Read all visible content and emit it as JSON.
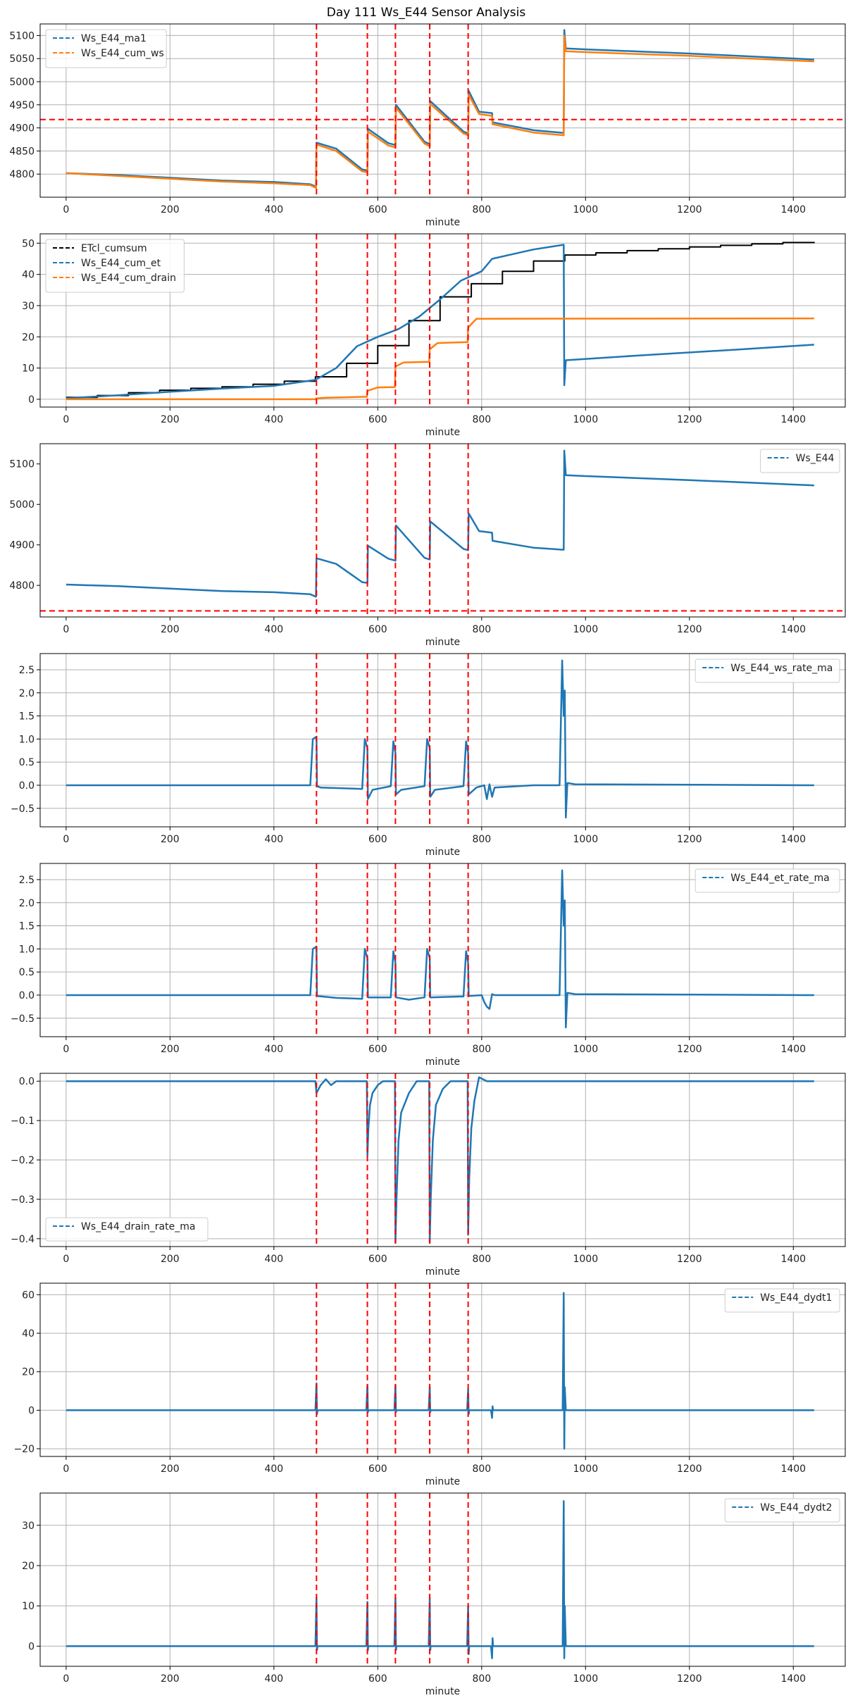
{
  "figure": {
    "title": "Day 111 Ws_E44 Sensor Analysis"
  },
  "colors": {
    "blue": "#1f77b4",
    "orange": "#ff7f0e",
    "black": "#000000",
    "red": "#ff0000",
    "grid": "#b0b0b0"
  },
  "chart_data": [
    {
      "type": "line",
      "xlabel": "minute",
      "xlim": [
        -50,
        1500
      ],
      "ylim": [
        4750,
        5125
      ],
      "yticks": [
        4800,
        4850,
        4900,
        4950,
        5000,
        5050,
        5100
      ],
      "xticks": [
        0,
        200,
        400,
        600,
        800,
        1000,
        1200,
        1400
      ],
      "grid": true,
      "legend_position": "top-left",
      "vlines": [
        482,
        580,
        634,
        700,
        774
      ],
      "hlines": [
        4918
      ],
      "series": [
        {
          "name": "Ws_E44_ma1",
          "color": "blue",
          "style": "dashed",
          "x": [
            0,
            100,
            200,
            300,
            400,
            470,
            481,
            482,
            520,
            570,
            580,
            581,
            620,
            634,
            635,
            690,
            700,
            701,
            765,
            774,
            775,
            795,
            820,
            821,
            900,
            958,
            959,
            962,
            1000,
            1200,
            1440
          ],
          "y": [
            4802,
            4798,
            4792,
            4786,
            4783,
            4778,
            4773,
            4868,
            4855,
            4810,
            4808,
            4898,
            4867,
            4863,
            4950,
            4870,
            4865,
            4958,
            4892,
            4888,
            4980,
            4935,
            4932,
            4912,
            4895,
            4889,
            5112,
            5072,
            5070,
            5061,
            5048
          ]
        },
        {
          "name": "Ws_E44_cum_ws",
          "color": "orange",
          "style": "dashed",
          "x": [
            0,
            100,
            200,
            300,
            400,
            470,
            481,
            482,
            520,
            570,
            580,
            581,
            620,
            634,
            635,
            690,
            700,
            701,
            765,
            774,
            775,
            795,
            820,
            821,
            900,
            958,
            959,
            962,
            1000,
            1200,
            1440
          ],
          "y": [
            4802,
            4796,
            4790,
            4784,
            4780,
            4776,
            4770,
            4864,
            4850,
            4806,
            4804,
            4892,
            4862,
            4858,
            4944,
            4866,
            4860,
            4952,
            4888,
            4884,
            4972,
            4930,
            4926,
            4908,
            4890,
            4884,
            5100,
            5066,
            5064,
            5056,
            5044
          ]
        }
      ]
    },
    {
      "type": "line",
      "xlabel": "minute",
      "xlim": [
        -50,
        1500
      ],
      "ylim": [
        -2.5,
        53
      ],
      "yticks": [
        0,
        10,
        20,
        30,
        40,
        50
      ],
      "xticks": [
        0,
        200,
        400,
        600,
        800,
        1000,
        1200,
        1400
      ],
      "grid": true,
      "legend_position": "top-left",
      "vlines": [
        482,
        580,
        634,
        700,
        774
      ],
      "hlines": [],
      "series": [
        {
          "name": "ETcl_cumsum",
          "color": "black",
          "style": "dashed",
          "step": true,
          "x": [
            0,
            60,
            120,
            180,
            240,
            300,
            360,
            420,
            480,
            540,
            600,
            660,
            720,
            780,
            840,
            900,
            960,
            1020,
            1080,
            1140,
            1200,
            1260,
            1320,
            1380,
            1440
          ],
          "y": [
            0.6,
            1.2,
            2.1,
            2.9,
            3.5,
            4.0,
            4.8,
            5.8,
            7.2,
            11.5,
            17.2,
            25.2,
            32.8,
            37.0,
            41.0,
            44.3,
            46.2,
            46.9,
            47.6,
            48.2,
            48.8,
            49.3,
            49.8,
            50.2,
            50.4
          ]
        },
        {
          "name": "Ws_E44_cum_et",
          "color": "blue",
          "style": "dashed",
          "x": [
            0,
            100,
            200,
            300,
            400,
            480,
            520,
            560,
            600,
            640,
            680,
            720,
            760,
            800,
            820,
            860,
            900,
            958,
            959,
            962,
            1100,
            1300,
            1440
          ],
          "y": [
            0.3,
            1.3,
            2.4,
            3.4,
            4.3,
            6.2,
            10.0,
            17.0,
            20.0,
            22.5,
            26.5,
            32.0,
            38.0,
            41.0,
            45.0,
            46.5,
            48.0,
            49.5,
            4.5,
            12.5,
            14.0,
            16.0,
            17.5
          ]
        },
        {
          "name": "Ws_E44_cum_drain",
          "color": "orange",
          "style": "dashed",
          "x": [
            0,
            480,
            481,
            500,
            579,
            580,
            600,
            633,
            634,
            650,
            699,
            700,
            715,
            773,
            774,
            790,
            1440
          ],
          "y": [
            0,
            0,
            0.3,
            0.5,
            0.8,
            2.7,
            3.8,
            3.9,
            10.5,
            11.8,
            12.0,
            16.0,
            18.0,
            18.3,
            23.0,
            25.8,
            25.9
          ]
        }
      ]
    },
    {
      "type": "line",
      "xlabel": "minute",
      "xlim": [
        -50,
        1500
      ],
      "ylim": [
        4722,
        5150
      ],
      "yticks": [
        4800,
        4900,
        5000,
        5100
      ],
      "xticks": [
        0,
        200,
        400,
        600,
        800,
        1000,
        1200,
        1400
      ],
      "grid": false,
      "legend_position": "top-right",
      "vlines": [
        482,
        580,
        634,
        700,
        774
      ],
      "hlines": [
        4737
      ],
      "series": [
        {
          "name": "Ws_E44",
          "color": "blue",
          "style": "dashed",
          "x": [
            0,
            100,
            200,
            300,
            400,
            470,
            481,
            482,
            520,
            570,
            580,
            581,
            620,
            634,
            635,
            690,
            700,
            701,
            765,
            774,
            775,
            795,
            820,
            821,
            900,
            958,
            959,
            962,
            1000,
            1200,
            1440
          ],
          "y": [
            4802,
            4798,
            4792,
            4786,
            4783,
            4778,
            4772,
            4867,
            4853,
            4808,
            4806,
            4898,
            4866,
            4861,
            4948,
            4868,
            4864,
            4958,
            4890,
            4887,
            4978,
            4934,
            4930,
            4910,
            4893,
            4888,
            5133,
            5072,
            5070,
            5060,
            5047
          ]
        }
      ]
    },
    {
      "type": "line",
      "xlabel": "minute",
      "xlim": [
        -50,
        1500
      ],
      "ylim": [
        -0.9,
        2.85
      ],
      "yticks": [
        -0.5,
        0.0,
        0.5,
        1.0,
        1.5,
        2.0,
        2.5
      ],
      "xticks": [
        0,
        200,
        400,
        600,
        800,
        1000,
        1200,
        1400
      ],
      "grid": true,
      "legend_position": "top-right",
      "vlines": [
        482,
        580,
        634,
        700,
        774
      ],
      "hlines": [],
      "series": [
        {
          "name": "Ws_E44_ws_rate_ma",
          "color": "blue",
          "style": "dashed",
          "x": [
            0,
            470,
            475,
            482,
            483,
            490,
            570,
            575,
            580,
            581,
            590,
            625,
            630,
            634,
            635,
            645,
            690,
            695,
            700,
            701,
            710,
            765,
            770,
            774,
            775,
            790,
            805,
            810,
            815,
            820,
            825,
            900,
            950,
            955,
            958,
            960,
            962,
            965,
            980,
            1440
          ],
          "y": [
            0,
            0,
            1.0,
            1.05,
            -0.02,
            -0.05,
            -0.08,
            1.0,
            0.8,
            -0.3,
            -0.1,
            -0.02,
            0.95,
            0.7,
            -0.2,
            -0.1,
            -0.02,
            1.0,
            0.8,
            -0.25,
            -0.1,
            -0.02,
            0.95,
            0.7,
            -0.2,
            -0.05,
            0.0,
            -0.3,
            0.02,
            -0.25,
            -0.05,
            0,
            0,
            2.7,
            1.5,
            2.05,
            -0.7,
            0.05,
            0.02,
            0
          ]
        }
      ]
    },
    {
      "type": "line",
      "xlabel": "minute",
      "xlim": [
        -50,
        1500
      ],
      "ylim": [
        -0.9,
        2.85
      ],
      "yticks": [
        -0.5,
        0.0,
        0.5,
        1.0,
        1.5,
        2.0,
        2.5
      ],
      "xticks": [
        0,
        200,
        400,
        600,
        800,
        1000,
        1200,
        1400
      ],
      "grid": true,
      "legend_position": "top-right",
      "vlines": [
        482,
        580,
        634,
        700,
        774
      ],
      "hlines": [],
      "series": [
        {
          "name": "Ws_E44_et_rate_ma",
          "color": "blue",
          "style": "dashed",
          "x": [
            0,
            470,
            475,
            482,
            483,
            520,
            570,
            575,
            580,
            581,
            625,
            630,
            634,
            635,
            660,
            690,
            695,
            700,
            701,
            765,
            770,
            774,
            775,
            800,
            805,
            810,
            815,
            820,
            825,
            900,
            950,
            955,
            958,
            960,
            962,
            965,
            980,
            1440
          ],
          "y": [
            0,
            0,
            1.0,
            1.05,
            -0.02,
            -0.06,
            -0.08,
            1.0,
            0.8,
            -0.05,
            -0.05,
            0.95,
            0.7,
            -0.05,
            -0.1,
            -0.05,
            1.0,
            0.8,
            -0.05,
            -0.03,
            0.95,
            0.7,
            -0.02,
            0.0,
            -0.15,
            -0.25,
            -0.3,
            0.02,
            0.0,
            0,
            0,
            2.7,
            1.5,
            2.05,
            -0.7,
            0.05,
            0.02,
            0
          ]
        }
      ]
    },
    {
      "type": "line",
      "xlabel": "minute",
      "xlim": [
        -50,
        1500
      ],
      "ylim": [
        -0.42,
        0.02
      ],
      "yticks": [
        -0.4,
        -0.3,
        -0.2,
        -0.1,
        0.0
      ],
      "xticks": [
        0,
        200,
        400,
        600,
        800,
        1000,
        1200,
        1400
      ],
      "grid": true,
      "legend_position": "bottom-left",
      "vlines": [
        482,
        580,
        634,
        700,
        774
      ],
      "hlines": [],
      "series": [
        {
          "name": "Ws_E44_drain_rate_ma",
          "color": "blue",
          "style": "dashed",
          "x": [
            0,
            480,
            482,
            490,
            500,
            510,
            520,
            579,
            580,
            582,
            585,
            590,
            600,
            610,
            633,
            634,
            636,
            640,
            645,
            660,
            675,
            699,
            700,
            702,
            706,
            712,
            725,
            740,
            773,
            774,
            776,
            780,
            786,
            795,
            810,
            1440
          ],
          "y": [
            0,
            0,
            -0.03,
            -0.01,
            0.005,
            -0.01,
            0.0,
            0,
            -0.19,
            -0.12,
            -0.06,
            -0.03,
            -0.01,
            0.0,
            0,
            -0.41,
            -0.3,
            -0.15,
            -0.08,
            -0.03,
            0.0,
            0,
            -0.41,
            -0.3,
            -0.15,
            -0.06,
            -0.02,
            0.0,
            0,
            -0.39,
            -0.25,
            -0.12,
            -0.05,
            0.01,
            0.0,
            0
          ]
        }
      ]
    },
    {
      "type": "line",
      "xlabel": "minute",
      "xlim": [
        -50,
        1500
      ],
      "ylim": [
        -24,
        66
      ],
      "yticks": [
        -20,
        0,
        20,
        40,
        60
      ],
      "xticks": [
        0,
        200,
        400,
        600,
        800,
        1000,
        1200,
        1400
      ],
      "grid": true,
      "legend_position": "top-right",
      "vlines": [
        482,
        580,
        634,
        700,
        774
      ],
      "hlines": [],
      "series": [
        {
          "name": "Ws_E44_dydt1",
          "color": "blue",
          "style": "dashed",
          "x": [
            0,
            480,
            482,
            483,
            484,
            578,
            580,
            581,
            582,
            632,
            634,
            635,
            636,
            698,
            700,
            701,
            702,
            772,
            774,
            775,
            776,
            818,
            820,
            821,
            822,
            956,
            958,
            959,
            960,
            962,
            1440
          ],
          "y": [
            0,
            0,
            14,
            -2,
            0,
            0,
            13,
            -1,
            0,
            0,
            13,
            -1,
            0,
            0,
            12,
            -1,
            0,
            0,
            11,
            -2,
            0,
            0,
            -4,
            2,
            0,
            0,
            61,
            -20,
            12,
            0,
            0
          ]
        }
      ]
    },
    {
      "type": "line",
      "xlabel": "minute",
      "xlim": [
        -50,
        1500
      ],
      "ylim": [
        -5,
        38
      ],
      "yticks": [
        0,
        10,
        20,
        30
      ],
      "xticks": [
        0,
        200,
        400,
        600,
        800,
        1000,
        1200,
        1400
      ],
      "grid": true,
      "legend_position": "top-right",
      "vlines": [
        482,
        580,
        634,
        700,
        774
      ],
      "hlines": [],
      "series": [
        {
          "name": "Ws_E44_dydt2",
          "color": "blue",
          "style": "dashed",
          "x": [
            0,
            480,
            482,
            483,
            484,
            578,
            580,
            581,
            582,
            632,
            634,
            635,
            636,
            698,
            700,
            701,
            702,
            772,
            774,
            775,
            776,
            818,
            820,
            821,
            822,
            956,
            958,
            959,
            960,
            962,
            1440
          ],
          "y": [
            0,
            0,
            12,
            -1,
            0,
            0,
            11,
            -1,
            0,
            0,
            12,
            -1,
            0,
            0,
            12,
            -1,
            0,
            0,
            10,
            -2,
            0,
            0,
            -3,
            2,
            0,
            0,
            36,
            -3,
            10,
            0,
            0
          ]
        }
      ]
    }
  ]
}
